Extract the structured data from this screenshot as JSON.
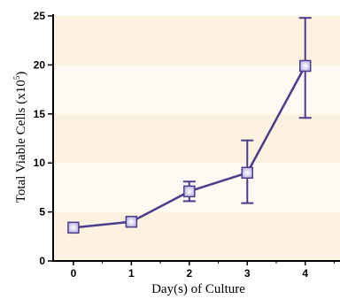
{
  "chart_data": {
    "type": "line",
    "title": "",
    "xlabel": "Day(s) of Culture",
    "ylabel_text": "Total Viable Cells (x10",
    "ylabel_sup": "5",
    "ylabel_close": ")",
    "x": [
      0,
      1,
      2,
      3,
      4
    ],
    "x_tick_labels": [
      "0",
      "1",
      "2",
      "3",
      "4"
    ],
    "xlim": [
      -0.35,
      4.6
    ],
    "ylim": [
      0,
      25
    ],
    "y_ticks": [
      0,
      5,
      10,
      15,
      20,
      25
    ],
    "y_tick_labels": [
      "0",
      "5",
      "10",
      "15",
      "20",
      "25"
    ],
    "series": [
      {
        "values": [
          3.4,
          4.0,
          7.1,
          9.0,
          19.9
        ],
        "error_low": [
          3.4,
          4.0,
          6.1,
          5.9,
          14.6
        ],
        "error_high": [
          3.4,
          4.0,
          8.1,
          12.3,
          24.8
        ]
      }
    ],
    "grid": false,
    "band_colors": [
      "#fdf2e0",
      "#fefaf3"
    ],
    "line_color": "#4b3c8c",
    "marker_fill": "#ccc4ec",
    "marker_center": "#ffffff"
  }
}
